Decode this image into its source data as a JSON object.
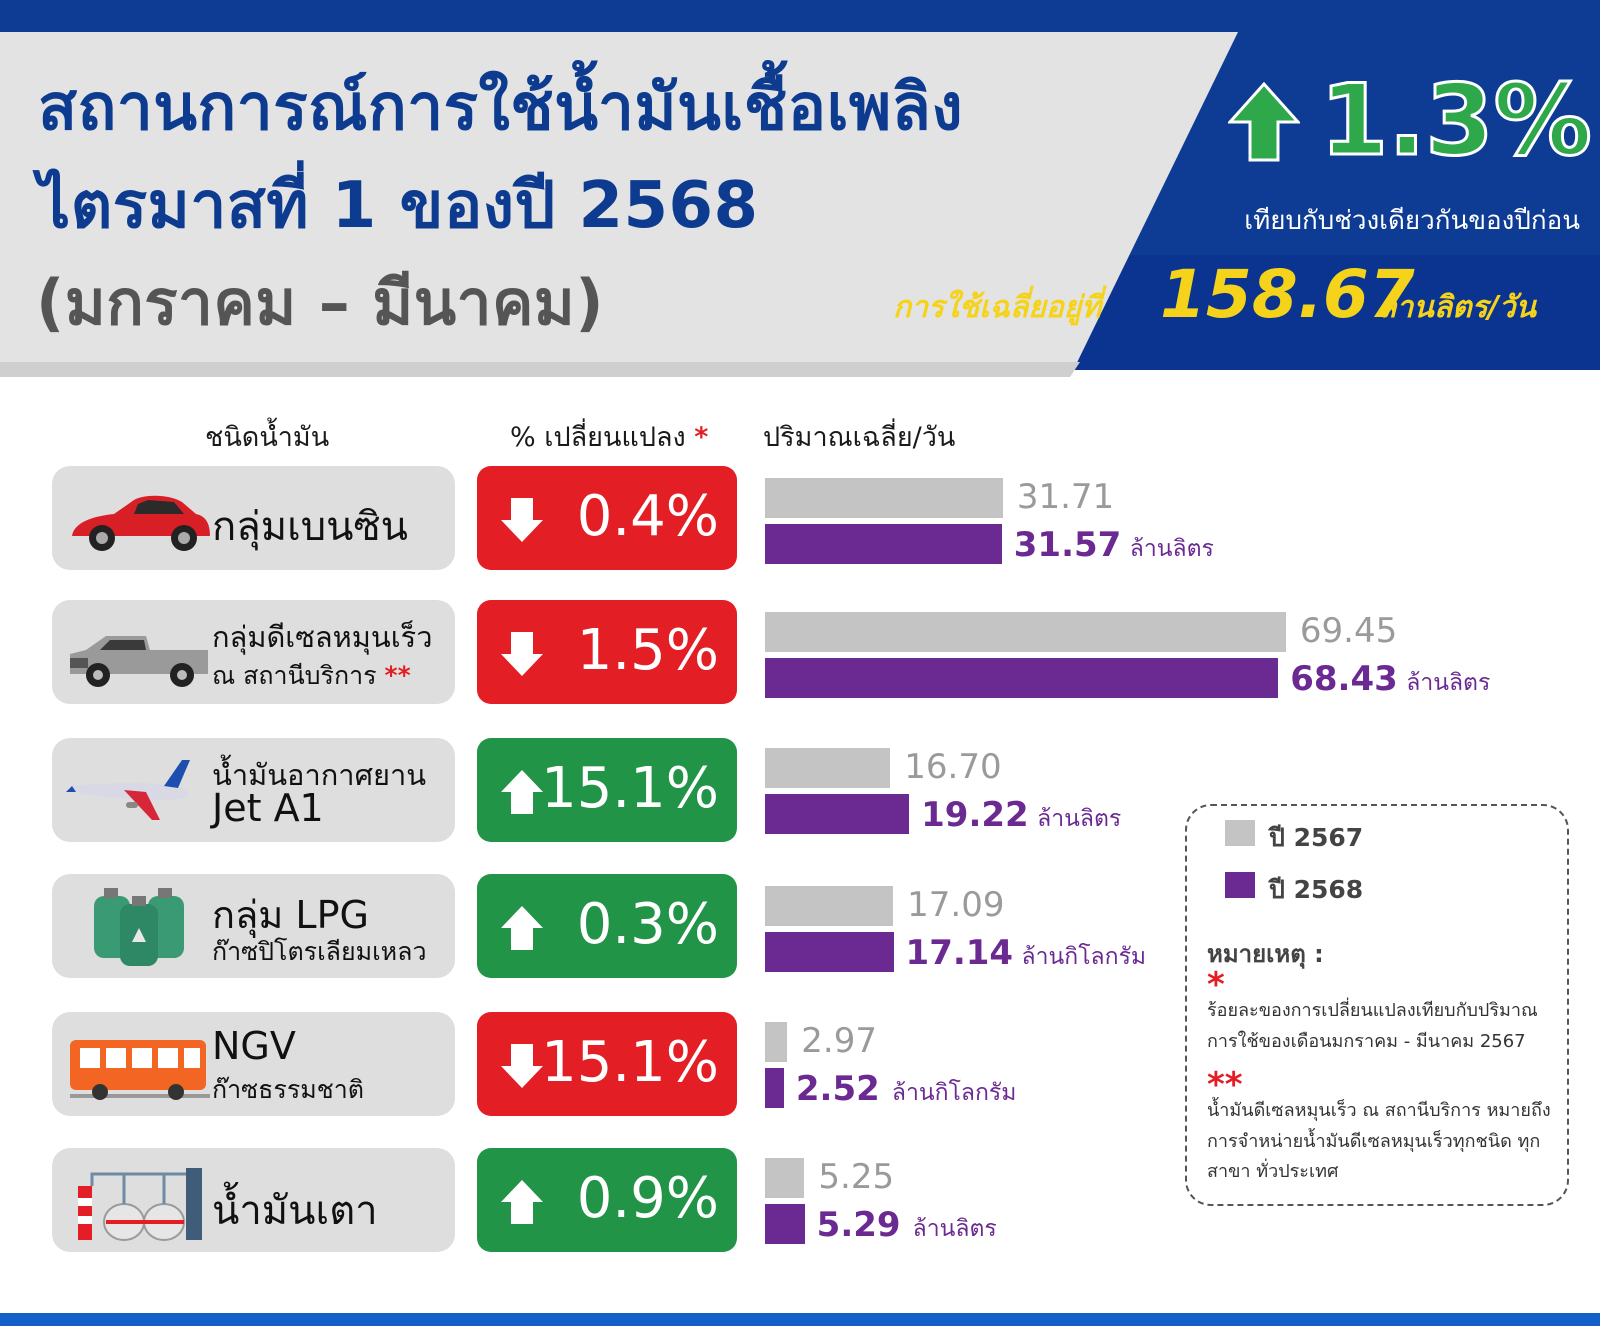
{
  "header": {
    "title_line_1": "สถานการณ์การใช้น้ำมันเชื้อเพลิง",
    "title_line_2": "ไตรมาสที่ 1 ของปี 2568",
    "title_line_3": "(มกราคม – มีนาคม)",
    "headline_change": "1.3%",
    "headline_direction": "up",
    "headline_compare": "เทียบกับช่วงเดียวกันของปีก่อน",
    "average_prefix": "การใช้เฉลี่ยอยู่ที่",
    "average_value": "158.67",
    "average_unit": "ล้านลิตร/วัน"
  },
  "columns": {
    "type": "ชนิดน้ำมัน",
    "change": "% เปลี่ยนแปลง",
    "change_mark": "*",
    "volume": "ปริมาณเฉลี่ย/วัน"
  },
  "chart_data": {
    "type": "bar",
    "orientation": "horizontal",
    "categories": [
      "กลุ่มเบนซิน",
      "กลุ่มดีเซลหมุนเร็ว ณ สถานีบริการ",
      "น้ำมันอากาศยาน Jet A1",
      "กลุ่ม LPG ก๊าซปิโตรเลียมเหลว",
      "NGV ก๊าซธรรมชาติ",
      "น้ำมันเตา"
    ],
    "series": [
      {
        "name": "ปี 2567",
        "color": "#c4c4c4",
        "values": [
          31.71,
          69.45,
          16.7,
          17.09,
          2.97,
          5.25
        ],
        "labels": [
          "31.71",
          "69.45",
          "16.70",
          "17.09",
          "2.97",
          "5.25"
        ]
      },
      {
        "name": "ปี 2568",
        "color": "#6b2a92",
        "values": [
          31.57,
          68.43,
          19.22,
          17.14,
          2.52,
          5.29
        ],
        "labels": [
          "31.57",
          "68.43",
          "19.22",
          "17.14",
          "2.52",
          "5.29"
        ]
      }
    ],
    "xlim": [
      0,
      70
    ]
  },
  "rows": [
    {
      "name": "กลุ่มเบนซิน",
      "sub": "",
      "sub_mark": "",
      "icon": "car-icon",
      "direction": "down",
      "change": "0.4%",
      "unit": "ล้านลิตร"
    },
    {
      "name": "กลุ่มดีเซลหมุนเร็ว",
      "sub": "ณ สถานีบริการ",
      "sub_mark": "**",
      "icon": "pickup-truck-icon",
      "direction": "down",
      "change": "1.5%",
      "unit": "ล้านลิตร"
    },
    {
      "name": "น้ำมันอากาศยาน",
      "sub": "Jet A1",
      "sub_mark": "",
      "icon": "airplane-icon",
      "direction": "up",
      "change": "15.1%",
      "unit": "ล้านลิตร"
    },
    {
      "name": "กลุ่ม LPG",
      "sub": "ก๊าซปิโตรเลียมเหลว",
      "sub_mark": "",
      "icon": "gas-cylinder-icon",
      "direction": "up",
      "change": "0.3%",
      "unit": "ล้านกิโลกรัม"
    },
    {
      "name": "NGV",
      "sub": "ก๊าซธรรมชาติ",
      "sub_mark": "",
      "icon": "bus-icon",
      "direction": "down",
      "change": "15.1%",
      "unit": "ล้านกิโลกรัม"
    },
    {
      "name": "น้ำมันเตา",
      "sub": "",
      "sub_mark": "",
      "icon": "factory-icon",
      "direction": "up",
      "change": "0.9%",
      "unit": "ล้านลิตร"
    }
  ],
  "legend": {
    "items": [
      "ปี 2567",
      "ปี 2568"
    ],
    "note_title": "หมายเหตุ :",
    "note_1_mark": "*",
    "note_1": "ร้อยละของการเปลี่ยนแปลงเทียบกับปริมาณการใช้ของเดือนมกราคม - มีนาคม 2567",
    "note_2_mark": "**",
    "note_2": "น้ำมันดีเซลหมุนเร็ว ณ สถานีบริการ หมายถึง การจำหน่ายน้ำมันดีเซลหมุนเร็วทุกชนิด ทุกสาขา ทั่วประเทศ"
  },
  "colors": {
    "header_blue": "#0e3b93",
    "title_blue": "#0d3b8f",
    "down_red": "#e31e25",
    "up_green": "#219447",
    "prev_grey": "#c4c4c4",
    "curr_purple": "#6b2a92",
    "highlight_yellow": "#f5d31a"
  }
}
